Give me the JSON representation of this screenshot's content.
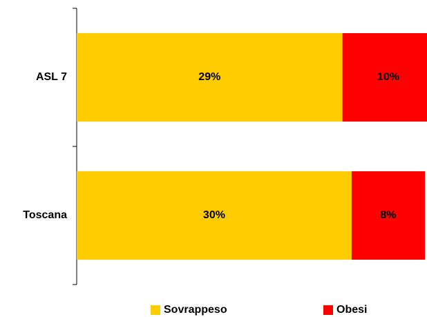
{
  "chart_data": {
    "type": "bar",
    "orientation": "horizontal",
    "stacked": true,
    "categories": [
      "ASL 7",
      "Toscana"
    ],
    "series": [
      {
        "name": "Sovrappeso",
        "values": [
          29,
          30
        ],
        "labels": [
          "29%",
          "30%"
        ],
        "color": "#FFCC00"
      },
      {
        "name": "Obesi",
        "values": [
          10,
          8
        ],
        "labels": [
          "10%",
          "8%"
        ],
        "color": "#FF0000"
      }
    ],
    "xlim": [
      0,
      38
    ],
    "grid": false,
    "legend_position": "bottom"
  }
}
